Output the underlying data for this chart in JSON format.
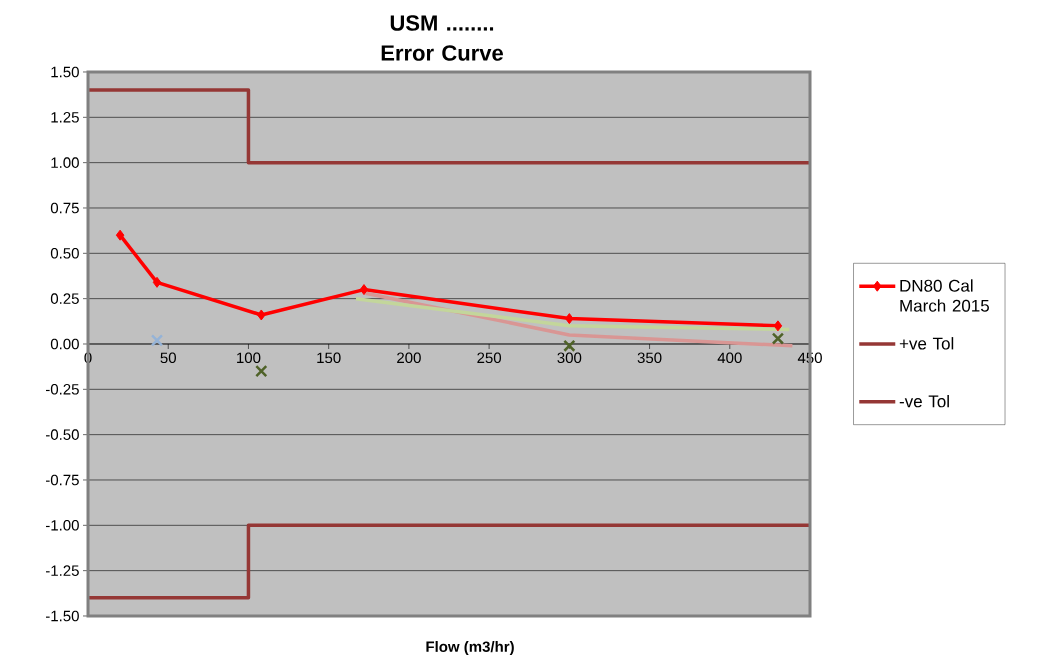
{
  "chart_data": {
    "type": "line",
    "title": "USM ........ Error Curve",
    "xlabel": "Flow (m3/hr)",
    "xlim": [
      0,
      450
    ],
    "xticks": [
      0,
      50,
      100,
      150,
      200,
      250,
      300,
      350,
      400,
      450
    ],
    "ylim": [
      -1.5,
      1.5
    ],
    "yticks": [
      {
        "value": -1.5,
        "label": "-1.50"
      },
      {
        "value": -1.25,
        "label": "-1.25"
      },
      {
        "value": -1.0,
        "label": "-1.00"
      },
      {
        "value": -0.75,
        "label": "-0.75"
      },
      {
        "value": -0.5,
        "label": "-0.50"
      },
      {
        "value": -0.25,
        "label": "-0.25"
      },
      {
        "value": 0,
        "label": "0.00"
      },
      {
        "value": 0.25,
        "label": "0.25"
      },
      {
        "value": 0.5,
        "label": "0.50"
      },
      {
        "value": 0.75,
        "label": "0.75"
      },
      {
        "value": 1.0,
        "label": "1.00"
      },
      {
        "value": 1.25,
        "label": "1.25"
      },
      {
        "value": 1.5,
        "label": "1.50"
      }
    ],
    "grid": "y",
    "legend": "right",
    "series": [
      {
        "name": "DN80 Cal March 2015",
        "marker": "diamond",
        "color": "#ff0000",
        "x": [
          20,
          43,
          108,
          172,
          300,
          430
        ],
        "values": [
          0.6,
          0.34,
          0.16,
          0.3,
          0.14,
          0.1
        ]
      },
      {
        "name": "+ve Tol",
        "marker": "none",
        "color": "#953735",
        "x": [
          0,
          100,
          100,
          450
        ],
        "values": [
          1.4,
          1.4,
          1.0,
          1.0
        ]
      },
      {
        "name": "-ve Tol",
        "marker": "none",
        "color": "#953735",
        "x": [
          0,
          100,
          100,
          450
        ],
        "values": [
          -1.4,
          -1.4,
          -1.0,
          -1.0
        ]
      },
      {
        "marker": "none",
        "color": "#d99694",
        "x": [
          173,
          300,
          439
        ],
        "values": [
          0.28,
          0.05,
          -0.01
        ]
      },
      {
        "marker": "none",
        "color": "#c3d69b",
        "x": [
          167,
          300,
          437
        ],
        "values": [
          0.25,
          0.1,
          0.08
        ]
      },
      {
        "type": "scatter",
        "marker": "cross",
        "color": "#95b3d7",
        "x": [
          43
        ],
        "values": [
          0.02
        ]
      },
      {
        "type": "scatter",
        "marker": "cross",
        "color": "#4f6228",
        "x": [
          108,
          300,
          430
        ],
        "values": [
          -0.15,
          -0.01,
          0.03
        ]
      }
    ]
  }
}
